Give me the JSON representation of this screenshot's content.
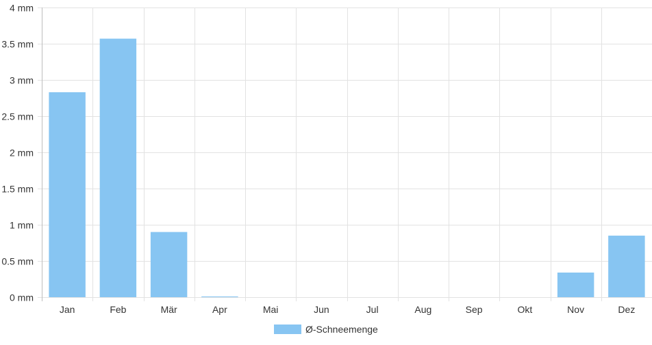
{
  "chart_data": {
    "type": "bar",
    "categories": [
      "Jan",
      "Feb",
      "Mär",
      "Apr",
      "Mai",
      "Jun",
      "Jul",
      "Aug",
      "Sep",
      "Okt",
      "Nov",
      "Dez"
    ],
    "series": [
      {
        "name": "Ø-Schneemenge",
        "values": [
          2.83,
          3.57,
          0.9,
          0.01,
          0,
          0,
          0,
          0,
          0,
          0,
          0.34,
          0.85
        ],
        "color": "#87c5f2"
      }
    ],
    "y_unit": "mm",
    "ylim": [
      0,
      4
    ],
    "y_ticks": [
      "0 mm",
      "0.5 mm",
      "1 mm",
      "1.5 mm",
      "2 mm",
      "2.5 mm",
      "3 mm",
      "3.5 mm",
      "4 mm"
    ],
    "grid": true,
    "legend_position": "bottom"
  }
}
